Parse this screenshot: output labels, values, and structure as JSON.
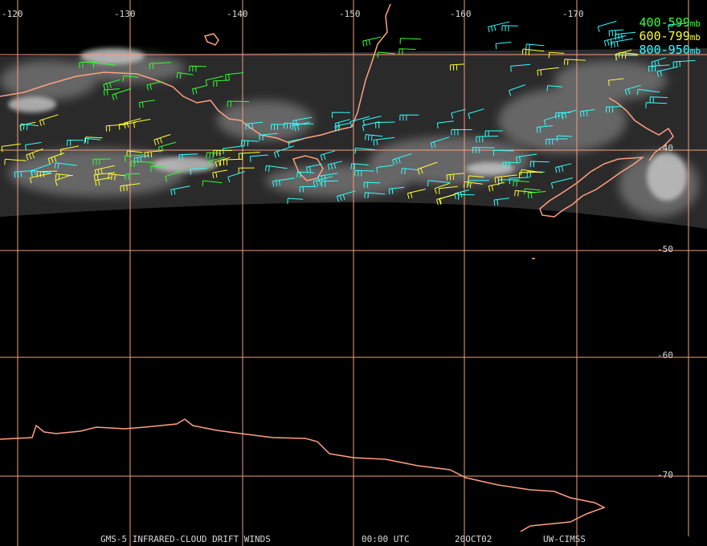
{
  "colors": {
    "background": "#000000",
    "grid": "#f0a080",
    "coast": "#ffa080",
    "label_text": "#d9d9d9"
  },
  "longitude_labels": [
    "-120",
    "-130",
    "-140",
    "-150",
    "-160",
    "-170"
  ],
  "latitude_labels": [
    "-40",
    "-50",
    "-60",
    "-70"
  ],
  "legend": [
    {
      "range": "400-599",
      "unit": "mb",
      "color": "#33ff33"
    },
    {
      "range": "600-799",
      "unit": "mb",
      "color": "#ffff33"
    },
    {
      "range": "800-950",
      "unit": "mb",
      "color": "#33ffff"
    }
  ],
  "footer": {
    "product": "GMS-5 INFRARED-CLOUD DRIFT WINDS",
    "time": "00:00 UTC",
    "date": "20OCT02",
    "source": "UW-CIMSS"
  }
}
